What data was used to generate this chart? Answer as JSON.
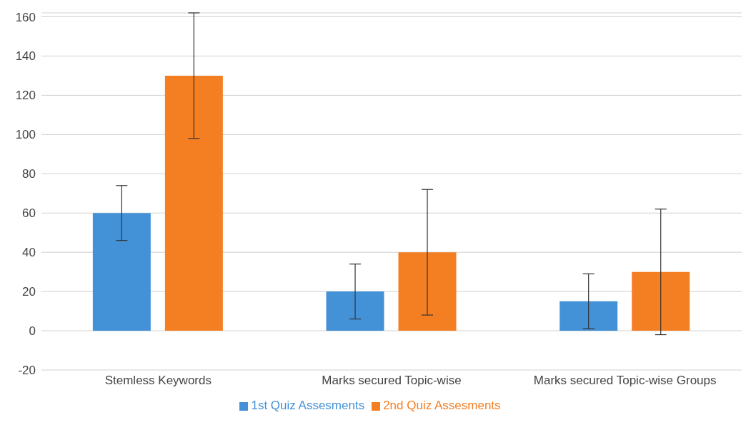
{
  "chart_data": {
    "type": "bar",
    "categories": [
      "Stemless Keywords",
      "Marks secured Topic-wise",
      "Marks secured Topic-wise Groups"
    ],
    "series": [
      {
        "name": "1st Quiz Assesments",
        "color": "#4391d6",
        "values": [
          60,
          20,
          15
        ],
        "errors": [
          14,
          14,
          14
        ]
      },
      {
        "name": "2nd Quiz Assesments",
        "color": "#f47e22",
        "values": [
          130,
          40,
          30
        ],
        "errors": [
          32,
          32,
          32
        ]
      }
    ],
    "ylim": [
      -20,
      162
    ],
    "yticks": [
      -20,
      0,
      20,
      40,
      60,
      80,
      100,
      120,
      140,
      160
    ],
    "grid": "y",
    "legend": "bottom"
  }
}
